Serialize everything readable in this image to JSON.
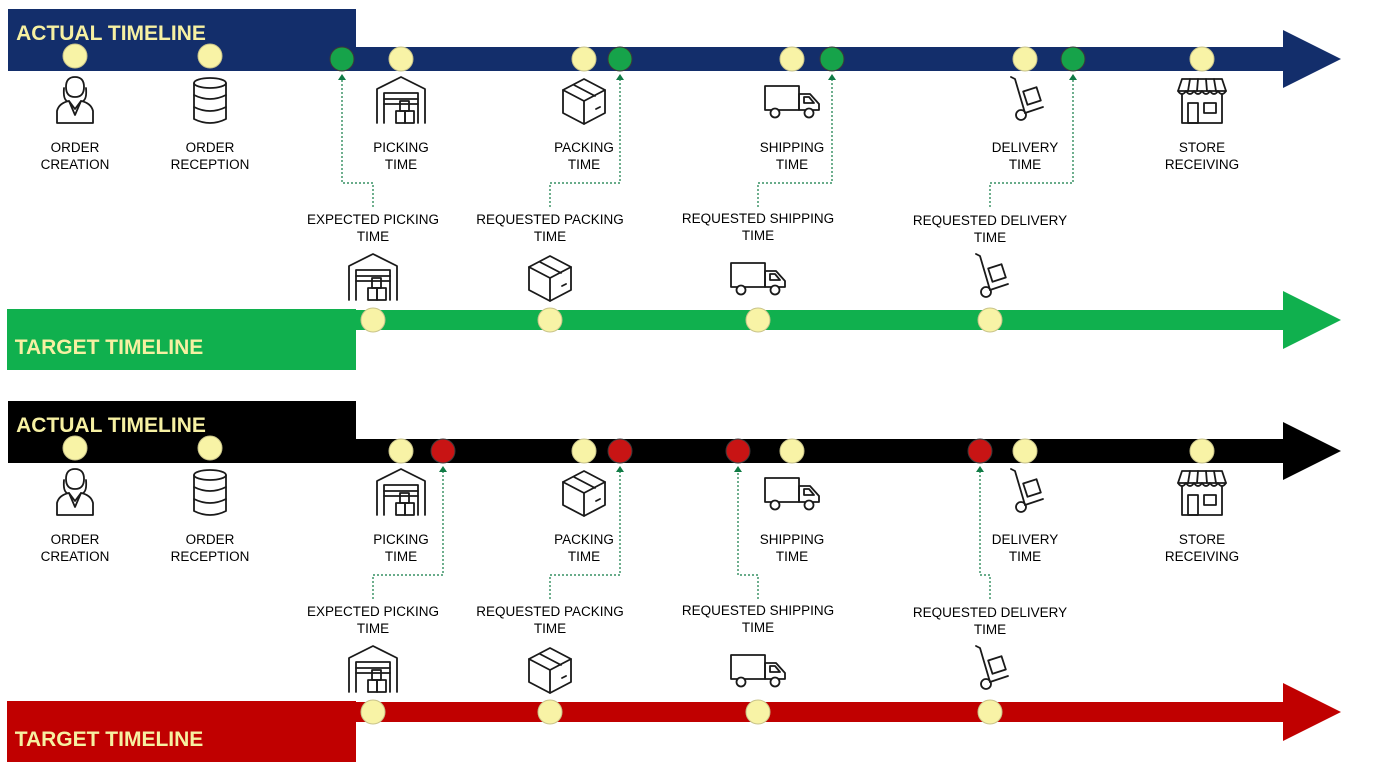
{
  "colors": {
    "actual_on_time": "#132e6b",
    "actual_late": "#000000",
    "target_on_time": "#10b04e",
    "target_late": "#c00000",
    "milestone_dot": "#f8f3a6",
    "on_time_dot": "#16a34a",
    "late_dot": "#c81414",
    "title_text": "#f6f0a2",
    "connector": "#0f7a44"
  },
  "icons": {
    "order_creation": "person-icon",
    "order_reception": "database-icon",
    "picking": "warehouse-icon",
    "packing": "box-icon",
    "shipping": "truck-icon",
    "delivery": "hand-truck-icon",
    "store_receiving": "store-icon"
  },
  "panels": [
    {
      "id": "on_time",
      "actual": {
        "title": "ACTUAL TIMELINE",
        "milestones": [
          {
            "key": "order_creation",
            "line1": "ORDER",
            "line2": "CREATION"
          },
          {
            "key": "order_reception",
            "line1": "ORDER",
            "line2": "RECEPTION"
          },
          {
            "key": "picking",
            "line1": "PICKING",
            "line2": "TIME"
          },
          {
            "key": "packing",
            "line1": "PACKING",
            "line2": "TIME"
          },
          {
            "key": "shipping",
            "line1": "SHIPPING",
            "line2": "TIME"
          },
          {
            "key": "delivery",
            "line1": "DELIVERY",
            "line2": "TIME"
          },
          {
            "key": "store_receiving",
            "line1": "STORE",
            "line2": "RECEIVING"
          }
        ],
        "status_dots": [
          "on-time",
          "on-time",
          "on-time",
          "on-time"
        ]
      },
      "target": {
        "title": "TARGET TIMELINE",
        "milestones": [
          {
            "key": "picking",
            "line1": "EXPECTED PICKING",
            "line2": "TIME"
          },
          {
            "key": "packing",
            "line1": "REQUESTED PACKING",
            "line2": "TIME"
          },
          {
            "key": "shipping",
            "line1": "REQUESTED SHIPPING",
            "line2": "TIME"
          },
          {
            "key": "delivery",
            "line1": "REQUESTED DELIVERY",
            "line2": "TIME"
          }
        ]
      }
    },
    {
      "id": "late",
      "actual": {
        "title": "ACTUAL TIMELINE",
        "milestones": [
          {
            "key": "order_creation",
            "line1": "ORDER",
            "line2": "CREATION"
          },
          {
            "key": "order_reception",
            "line1": "ORDER",
            "line2": "RECEPTION"
          },
          {
            "key": "picking",
            "line1": "PICKING",
            "line2": "TIME"
          },
          {
            "key": "packing",
            "line1": "PACKING",
            "line2": "TIME"
          },
          {
            "key": "shipping",
            "line1": "SHIPPING",
            "line2": "TIME"
          },
          {
            "key": "delivery",
            "line1": "DELIVERY",
            "line2": "TIME"
          },
          {
            "key": "store_receiving",
            "line1": "STORE",
            "line2": "RECEIVING"
          }
        ],
        "status_dots": [
          "late",
          "late",
          "late",
          "late"
        ]
      },
      "target": {
        "title": "TARGET TIMELINE",
        "milestones": [
          {
            "key": "picking",
            "line1": "EXPECTED PICKING",
            "line2": "TIME"
          },
          {
            "key": "packing",
            "line1": "REQUESTED PACKING",
            "line2": "TIME"
          },
          {
            "key": "shipping",
            "line1": "REQUESTED SHIPPING",
            "line2": "TIME"
          },
          {
            "key": "delivery",
            "line1": "REQUESTED DELIVERY",
            "line2": "TIME"
          }
        ]
      }
    }
  ]
}
